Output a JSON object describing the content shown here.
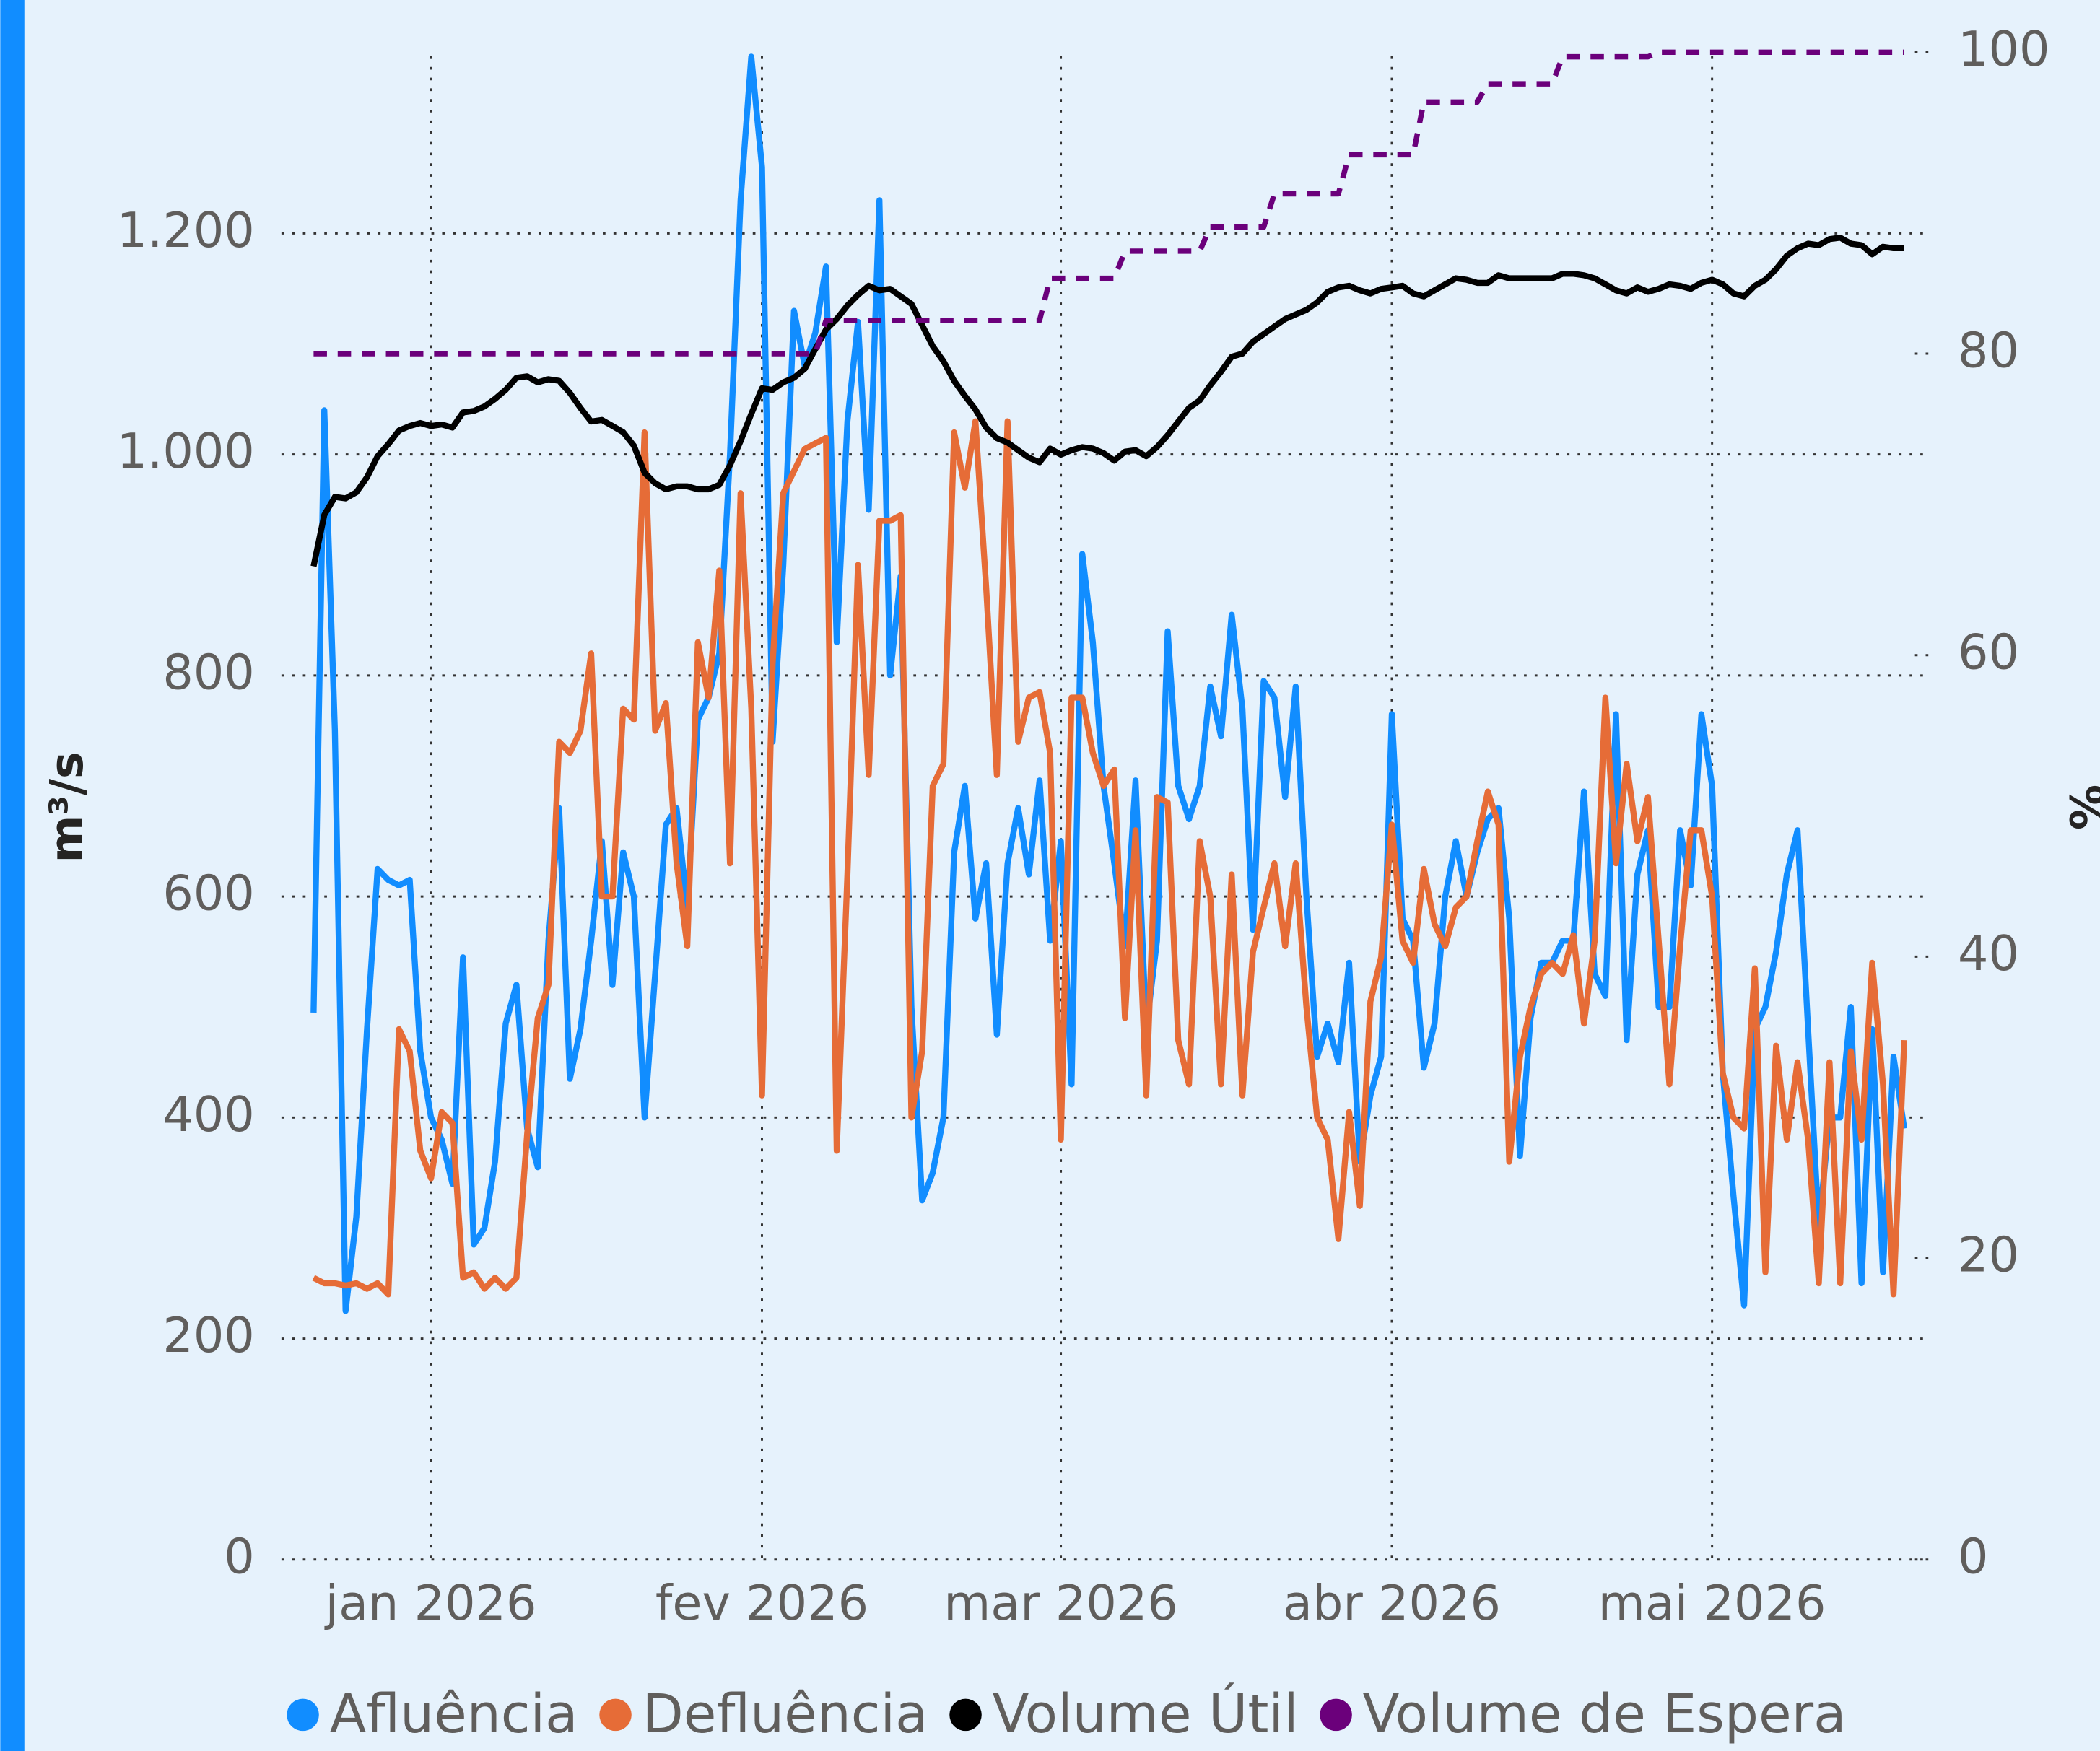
{
  "chart_data": {
    "type": "line",
    "categories": [
      null,
      null,
      null,
      null,
      null,
      null,
      null,
      null,
      null,
      null,
      null,
      "jan 2026",
      null,
      null,
      null,
      null,
      null,
      null,
      null,
      null,
      null,
      null,
      null,
      null,
      null,
      null,
      null,
      null,
      null,
      null,
      null,
      null,
      null,
      null,
      null,
      null,
      null,
      null,
      null,
      null,
      null,
      null,
      "fev 2026",
      null,
      null,
      null,
      null,
      null,
      null,
      null,
      null,
      null,
      null,
      null,
      null,
      null,
      null,
      null,
      null,
      null,
      null,
      null,
      null,
      null,
      null,
      null,
      null,
      null,
      null,
      null,
      "mar 2026",
      null,
      null,
      null,
      null,
      null,
      null,
      null,
      null,
      null,
      null,
      null,
      null,
      null,
      null,
      null,
      null,
      null,
      null,
      null,
      null,
      null,
      null,
      null,
      null,
      null,
      null,
      null,
      null,
      null,
      null,
      "abr 2026",
      null,
      null,
      null,
      null,
      null,
      null,
      null,
      null,
      null,
      null,
      null,
      null,
      null,
      null,
      null,
      null,
      null,
      null,
      null,
      null,
      null,
      null,
      null,
      null,
      null,
      null,
      null,
      null,
      null,
      "mai 2026",
      null,
      null,
      null,
      null,
      null,
      null,
      null,
      null,
      null,
      null,
      null,
      null,
      null,
      null,
      null,
      null,
      null,
      null
    ],
    "ylabel": "m³/s",
    "y2label": "%",
    "ylim": [
      0,
      1364
    ],
    "yticks": [
      0,
      200,
      400,
      600,
      800,
      {
        "value": 1000,
        "label": "1.000"
      },
      {
        "value": 1200,
        "label": "1.200"
      }
    ],
    "y2lim": [
      0,
      100
    ],
    "y2ticks": [
      0,
      20,
      40,
      60,
      80,
      100
    ],
    "grid": true,
    "legend": "bottom",
    "series": [
      {
        "name": "Afluência",
        "color": "#118dff",
        "values": [
          495,
          1040,
          750,
          225,
          310,
          480,
          625,
          615,
          610,
          615,
          460,
          400,
          380,
          340,
          545,
          285,
          300,
          360,
          485,
          520,
          390,
          355,
          560,
          680,
          435,
          480,
          560,
          650,
          520,
          640,
          600,
          400,
          530,
          665,
          680,
          590,
          760,
          780,
          820,
          1000,
          1230,
          1360,
          1260,
          740,
          900,
          1130,
          1080,
          1110,
          1170,
          830,
          1030,
          1120,
          950,
          1230,
          800,
          890,
          500,
          325,
          350,
          400,
          640,
          700,
          580,
          630,
          475,
          630,
          680,
          620,
          705,
          560,
          650,
          430,
          910,
          830,
          700,
          630,
          555,
          705,
          480,
          560,
          840,
          700,
          670,
          700,
          790,
          745,
          855,
          770,
          570,
          795,
          780,
          690,
          790,
          600,
          455,
          485,
          450,
          540,
          360,
          420,
          455,
          765,
          580,
          560,
          445,
          485,
          600,
          650,
          600,
          640,
          670,
          680,
          580,
          365,
          490,
          540,
          540,
          560,
          560,
          695,
          530,
          510,
          765,
          470,
          620,
          660,
          500,
          500,
          660,
          610,
          765,
          700,
          440,
          330,
          230,
          480,
          500,
          550,
          620,
          660,
          480,
          300,
          400,
          400,
          500,
          250,
          480,
          260,
          455,
          390
        ]
      },
      {
        "name": "Defluência",
        "color": "#e66c37",
        "values": [
          255,
          250,
          250,
          248,
          250,
          245,
          250,
          240,
          480,
          460,
          370,
          345,
          405,
          395,
          255,
          260,
          245,
          255,
          245,
          255,
          385,
          490,
          520,
          740,
          730,
          750,
          820,
          600,
          600,
          770,
          760,
          1020,
          750,
          775,
          630,
          555,
          830,
          780,
          895,
          630,
          965,
          770,
          420,
          810,
          965,
          985,
          1005,
          1010,
          1015,
          370,
          620,
          900,
          710,
          940,
          940,
          945,
          400,
          460,
          700,
          720,
          1020,
          970,
          1030,
          880,
          710,
          1030,
          740,
          780,
          785,
          730,
          380,
          780,
          780,
          730,
          700,
          715,
          490,
          660,
          420,
          690,
          685,
          470,
          430,
          650,
          600,
          430,
          620,
          420,
          550,
          590,
          630,
          555,
          630,
          500,
          400,
          380,
          290,
          405,
          320,
          505,
          545,
          665,
          560,
          540,
          625,
          575,
          555,
          590,
          600,
          650,
          695,
          665,
          360,
          455,
          500,
          530,
          540,
          530,
          565,
          485,
          560,
          780,
          630,
          720,
          650,
          690,
          560,
          430,
          555,
          660,
          660,
          600,
          440,
          400,
          390,
          535,
          260,
          465,
          380,
          450,
          380,
          250,
          450,
          250,
          460,
          380,
          540,
          430,
          240,
          470
        ]
      },
      {
        "name": "Volume Útil",
        "color": "#000000",
        "axis": "y2",
        "values": [
          65.9,
          69.3,
          70.5,
          70.4,
          70.8,
          71.8,
          73.2,
          74.0,
          74.9,
          75.2,
          75.4,
          75.2,
          75.3,
          75.1,
          76.1,
          76.2,
          76.5,
          77.0,
          77.6,
          78.4,
          78.5,
          78.1,
          78.3,
          78.2,
          77.4,
          76.4,
          75.5,
          75.6,
          75.2,
          74.8,
          73.9,
          72.1,
          71.4,
          71.0,
          71.2,
          71.2,
          71.0,
          71.0,
          71.3,
          72.6,
          74.2,
          76.0,
          77.7,
          77.6,
          78.1,
          78.4,
          79.0,
          80.3,
          81.6,
          82.3,
          83.2,
          83.9,
          84.5,
          84.2,
          84.3,
          83.8,
          83.3,
          81.9,
          80.5,
          79.5,
          78.2,
          77.2,
          76.3,
          75.1,
          74.4,
          74.1,
          73.6,
          73.1,
          72.8,
          73.7,
          73.3,
          73.6,
          73.8,
          73.7,
          73.4,
          72.9,
          73.5,
          73.6,
          73.2,
          73.8,
          74.6,
          75.5,
          76.4,
          76.9,
          77.9,
          78.8,
          79.8,
          80.0,
          80.8,
          81.3,
          81.8,
          82.3,
          82.6,
          82.9,
          83.4,
          84.1,
          84.4,
          84.5,
          84.2,
          84.0,
          84.3,
          84.4,
          84.5,
          84.0,
          83.8,
          84.2,
          84.6,
          85.0,
          84.9,
          84.7,
          84.7,
          85.2,
          85.0,
          85.0,
          85.0,
          85.0,
          85.0,
          85.3,
          85.3,
          85.2,
          85.0,
          84.6,
          84.2,
          84.0,
          84.4,
          84.1,
          84.3,
          84.6,
          84.5,
          84.3,
          84.7,
          84.9,
          84.6,
          84.0,
          83.8,
          84.5,
          84.9,
          85.6,
          86.5,
          87.0,
          87.3,
          87.2,
          87.6,
          87.7,
          87.3,
          87.2,
          86.6,
          87.1,
          87.0,
          87.0
        ]
      },
      {
        "name": "Volume de Espera",
        "color": "#6b007b",
        "axis": "y2",
        "line_style": "dotted",
        "values": [
          80,
          80,
          80,
          80,
          80,
          80,
          80,
          80,
          80,
          80,
          80,
          80,
          80,
          80,
          80,
          80,
          80,
          80,
          80,
          80,
          80,
          80,
          80,
          80,
          80,
          80,
          80,
          80,
          80,
          80,
          80,
          80,
          80,
          80,
          80,
          80,
          80,
          80,
          80,
          80,
          80,
          80,
          80,
          80,
          80,
          80,
          80,
          80,
          82.2,
          82.2,
          82.2,
          82.2,
          82.2,
          82.2,
          82.2,
          82.2,
          82.2,
          82.2,
          82.2,
          82.2,
          82.2,
          82.2,
          82.2,
          82.2,
          82.2,
          82.2,
          82.2,
          82.2,
          82.2,
          85,
          85,
          85,
          85,
          85,
          85,
          85,
          86.8,
          86.8,
          86.8,
          86.8,
          86.8,
          86.8,
          86.8,
          86.8,
          88.4,
          88.4,
          88.4,
          88.4,
          88.4,
          88.4,
          90.6,
          90.6,
          90.6,
          90.6,
          90.6,
          90.6,
          90.6,
          93.2,
          93.2,
          93.2,
          93.2,
          93.2,
          93.2,
          93.2,
          96.7,
          96.7,
          96.7,
          96.7,
          96.7,
          96.7,
          97.9,
          97.9,
          97.9,
          97.9,
          97.9,
          97.9,
          97.9,
          99.7,
          99.7,
          99.7,
          99.7,
          99.7,
          99.7,
          99.7,
          99.7,
          99.7,
          100,
          100,
          100,
          100,
          100,
          100,
          100,
          100,
          100,
          100,
          100,
          100,
          100,
          100,
          100,
          100,
          100,
          100,
          100,
          100,
          100,
          100,
          100,
          100
        ]
      }
    ]
  }
}
